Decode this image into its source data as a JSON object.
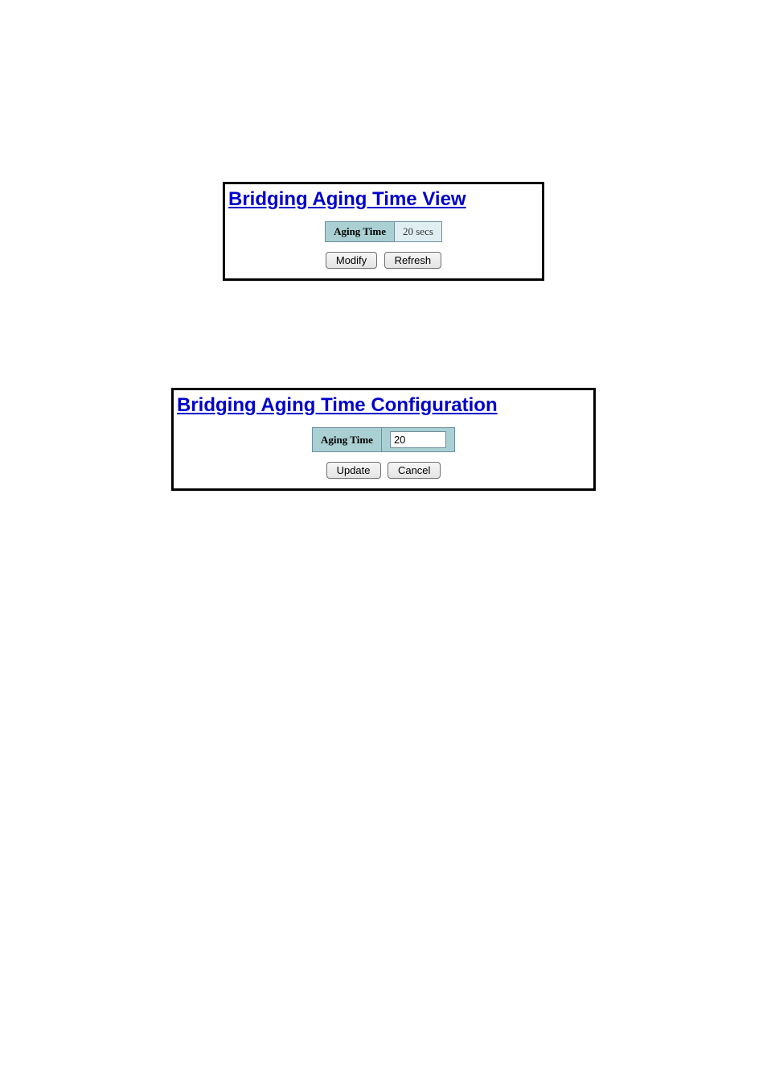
{
  "view_panel": {
    "title": "Bridging Aging Time View",
    "label": "Aging Time",
    "value": "20 secs",
    "buttons": {
      "modify": "Modify",
      "refresh": "Refresh"
    },
    "colors": {
      "title_color": "#0000cc",
      "label_bg": "#aad0d3",
      "value_bg": "#dfeef1",
      "border": "#6b8e9e",
      "panel_border": "#000000"
    }
  },
  "config_panel": {
    "title": "Bridging Aging Time Configuration",
    "label": "Aging Time",
    "input_value": "20",
    "buttons": {
      "update": "Update",
      "cancel": "Cancel"
    },
    "colors": {
      "title_color": "#0000cc",
      "label_bg": "#aad0d3",
      "border": "#6b8e9e",
      "panel_border": "#000000"
    }
  }
}
